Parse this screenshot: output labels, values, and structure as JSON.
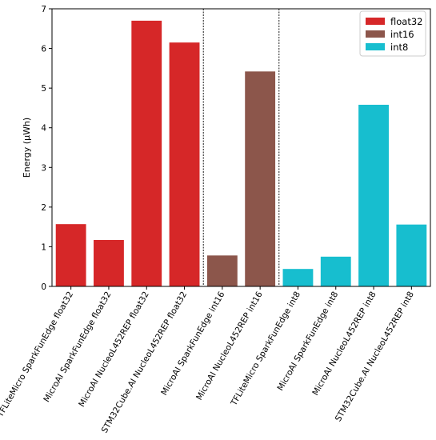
{
  "chart_data": {
    "type": "bar",
    "title": "",
    "xlabel": "",
    "ylabel": "Energy (μWh)",
    "ylim": [
      0,
      7
    ],
    "yticks": [
      0,
      1,
      2,
      3,
      4,
      5,
      6,
      7
    ],
    "grid": false,
    "legend_position": "top-right",
    "categories": [
      "TFLiteMicro SparkFunEdge float32",
      "MicroAI SparkFunEdge float32",
      "MicroAI NucleoL452REP float32",
      "STM32Cube.AI NucleoL452REP float32",
      "MicroAI SparkFunEdge int16",
      "MicroAI NucleoL452REP int16",
      "TFLiteMicro SparkFunEdge int8",
      "MicroAI SparkFunEdge int8",
      "MicroAI NucleoL452REP int8",
      "STM32Cube.AI NucleoL452REP int8"
    ],
    "values": [
      1.57,
      1.17,
      6.7,
      6.15,
      0.78,
      5.42,
      0.44,
      0.75,
      4.58,
      1.56
    ],
    "bar_series_index": [
      0,
      0,
      0,
      0,
      1,
      1,
      2,
      2,
      2,
      2
    ],
    "series": [
      {
        "name": "float32",
        "color": "#d62728"
      },
      {
        "name": "int16",
        "color": "#8c564b"
      },
      {
        "name": "int8",
        "color": "#17becf"
      }
    ],
    "group_separators_after": [
      3,
      5
    ]
  }
}
